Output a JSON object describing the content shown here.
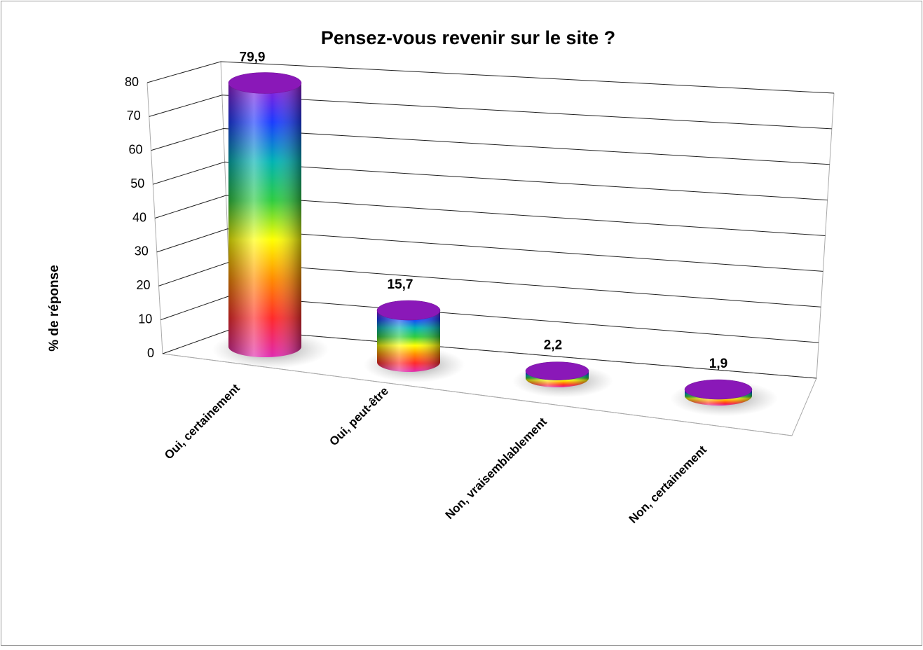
{
  "chart_data": {
    "type": "bar3d",
    "title": "Pensez-vous revenir sur le site ?",
    "y_label": "% de réponse",
    "categories": [
      "Oui, certainement",
      "Oui, peut-être",
      "Non, vraisemblablement",
      "Non, certainement"
    ],
    "values": [
      79.9,
      15.7,
      2.2,
      1.9
    ],
    "value_labels": [
      "79,9",
      "15,7",
      "2,2",
      "1,9"
    ],
    "ylim": [
      0,
      80
    ],
    "yticks": [
      0,
      10,
      20,
      30,
      40,
      50,
      60,
      70,
      80
    ],
    "grid": true,
    "colors": [
      "#e02ab0",
      "#ff2a2a",
      "#ff8c00",
      "#ffff00",
      "#2ecc40",
      "#00b3b3",
      "#1a3cff",
      "#9b1ad6"
    ],
    "top_color": "#8a18b8"
  }
}
